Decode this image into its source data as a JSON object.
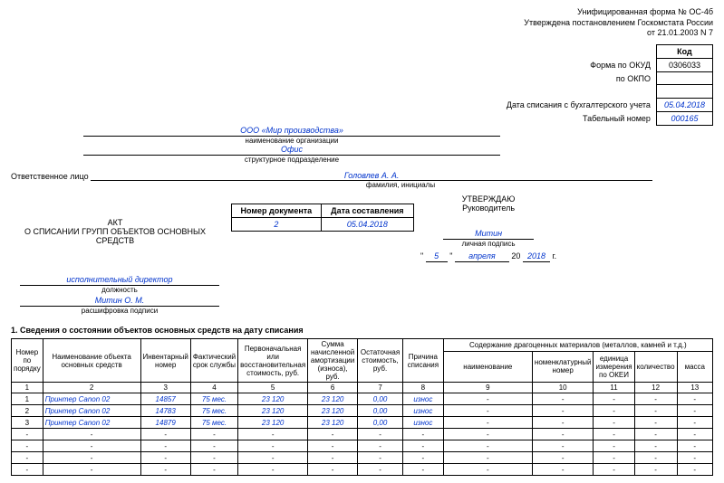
{
  "form_header": {
    "line1": "Унифицированная форма № ОС-4б",
    "line2": "Утверждена постановлением Госкомстата России",
    "line3": "от 21.01.2003 N 7"
  },
  "codes": {
    "header": "Код",
    "okud_label": "Форма по ОКУД",
    "okud_value": "0306033",
    "okpo_label": "по ОКПО",
    "okpo_value": "",
    "writeoff_date_label": "Дата списания с бухгалтерского учета",
    "writeoff_date_value": "05.04.2018",
    "tabel_label": "Табельный номер",
    "tabel_value": "000165"
  },
  "org": {
    "name": "ООО «Мир производства»",
    "name_sub": "наименование организации",
    "subdivision": "Офис",
    "subdivision_sub": "структурное подразделение"
  },
  "responsible": {
    "label": "Ответственное лицо",
    "name": "Головлев А. А.",
    "sub": "фамилия, инициалы"
  },
  "approval": {
    "approve": "УТВЕРЖДАЮ",
    "head": "Руководитель",
    "position": "исполнительный директор",
    "position_sub": "должность",
    "signature": "Митин",
    "signature_sub": "личная подпись",
    "decoded": "Митин О. М.",
    "decoded_sub": "расшифровка подписи",
    "quote_open": "\"",
    "quote_close": "\"",
    "day": "5",
    "month": "апреля",
    "year_prefix": "20",
    "year": "2018",
    "year_suffix": "г."
  },
  "doc_num": {
    "num_label": "Номер документа",
    "date_label": "Дата составления",
    "num_value": "2",
    "date_value": "05.04.2018"
  },
  "act_title": {
    "line1": "АКТ",
    "line2": "О СПИСАНИИ ГРУПП ОБЪЕКТОВ ОСНОВНЫХ СРЕДСТВ"
  },
  "section1_title": "1. Сведения о состоянии объектов основных средств на дату списания",
  "table": {
    "headers": {
      "h1": "Номер по порядку",
      "h2": "Наименование объекта основных средств",
      "h3": "Инвентарный номер",
      "h4": "Фактический срок службы",
      "h5": "Первоначальная или восстановительная стоимость, руб.",
      "h6": "Сумма начисленной амортизации (износа), руб.",
      "h7": "Остаточная стоимость, руб.",
      "h8": "Причина списания",
      "h9": "Содержание драгоценных материалов (металлов, камней и т.д.)",
      "h9a": "наименование",
      "h9b": "номенклатурный номер",
      "h9c": "единица измерения по ОКЕИ",
      "h9d": "количество",
      "h9e": "масса"
    },
    "colnums": [
      "1",
      "2",
      "3",
      "4",
      "5",
      "6",
      "7",
      "8",
      "9",
      "10",
      "11",
      "12",
      "13"
    ],
    "rows": [
      {
        "n": "1",
        "name": "Принтер Canon 02",
        "inv": "14857",
        "term": "75 мес.",
        "cost": "23 120",
        "amort": "23 120",
        "rest": "0,00",
        "reason": "износ",
        "a": "-",
        "b": "-",
        "c": "-",
        "d": "-",
        "e": "-"
      },
      {
        "n": "2",
        "name": "Принтер Canon 02",
        "inv": "14783",
        "term": "75 мес.",
        "cost": "23 120",
        "amort": "23 120",
        "rest": "0,00",
        "reason": "износ",
        "a": "-",
        "b": "-",
        "c": "-",
        "d": "-",
        "e": "-"
      },
      {
        "n": "3",
        "name": "Принтер Canon 02",
        "inv": "14879",
        "term": "75 мес.",
        "cost": "23 120",
        "amort": "23 120",
        "rest": "0,00",
        "reason": "износ",
        "a": "-",
        "b": "-",
        "c": "-",
        "d": "-",
        "e": "-"
      },
      {
        "n": "-",
        "name": "-",
        "inv": "-",
        "term": "-",
        "cost": "-",
        "amort": "-",
        "rest": "-",
        "reason": "-",
        "a": "-",
        "b": "-",
        "c": "-",
        "d": "-",
        "e": "-"
      },
      {
        "n": "-",
        "name": "-",
        "inv": "-",
        "term": "-",
        "cost": "-",
        "amort": "-",
        "rest": "-",
        "reason": "-",
        "a": "-",
        "b": "-",
        "c": "-",
        "d": "-",
        "e": "-"
      },
      {
        "n": "-",
        "name": "-",
        "inv": "-",
        "term": "-",
        "cost": "-",
        "amort": "-",
        "rest": "-",
        "reason": "-",
        "a": "-",
        "b": "-",
        "c": "-",
        "d": "-",
        "e": "-"
      },
      {
        "n": "-",
        "name": "-",
        "inv": "-",
        "term": "-",
        "cost": "-",
        "amort": "-",
        "rest": "-",
        "reason": "-",
        "a": "-",
        "b": "-",
        "c": "-",
        "d": "-",
        "e": "-"
      }
    ]
  }
}
